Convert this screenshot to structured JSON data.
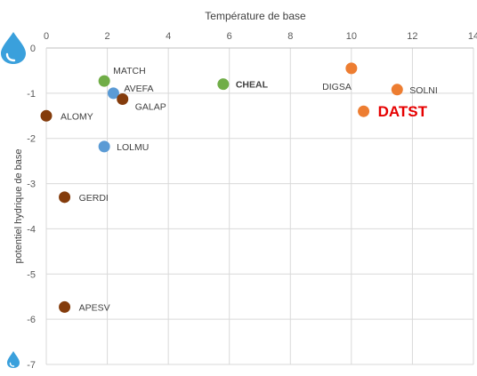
{
  "chart_data": {
    "type": "scatter",
    "xlabel": "Température de base",
    "ylabel": "potentiel hydrique de base",
    "xlim": [
      0,
      14
    ],
    "ylim": [
      -7,
      0
    ],
    "x_ticks": [
      "0",
      "2",
      "4",
      "6",
      "8",
      "10",
      "12",
      "14"
    ],
    "y_ticks": [
      "0",
      "-1",
      "-2",
      "-3",
      "-4",
      "-5",
      "-6",
      "-7"
    ],
    "x_axis_position": "top",
    "grid": true,
    "colors": {
      "green": "#70ad47",
      "blue": "#5b9bd5",
      "brown": "#843c0c",
      "orange": "#ed7d31",
      "highlight_label": "#e60000",
      "drop": "#3aa0dc"
    },
    "icons": {
      "top_left": "water-drop-icon",
      "bottom_left": "water-drop-icon"
    },
    "points": [
      {
        "label": "MATCH",
        "x": 1.9,
        "y": -0.73,
        "color": "green"
      },
      {
        "label": "AVEFA",
        "x": 2.2,
        "y": -1.0,
        "color": "blue"
      },
      {
        "label": "GALAP",
        "x": 2.5,
        "y": -1.13,
        "color": "brown"
      },
      {
        "label": "ALOMY",
        "x": 0.0,
        "y": -1.5,
        "color": "brown"
      },
      {
        "label": "LOLMU",
        "x": 1.9,
        "y": -2.18,
        "color": "blue"
      },
      {
        "label": "GERDI",
        "x": 0.6,
        "y": -3.3,
        "color": "brown"
      },
      {
        "label": "APESV",
        "x": 0.6,
        "y": -5.73,
        "color": "brown"
      },
      {
        "label": "CHEAL",
        "x": 5.8,
        "y": -0.8,
        "color": "green",
        "bold": true
      },
      {
        "label": "DIGSA",
        "x": 10.0,
        "y": -0.45,
        "color": "orange"
      },
      {
        "label": "SOLNI",
        "x": 11.5,
        "y": -0.92,
        "color": "orange"
      },
      {
        "label": "DATST",
        "x": 10.4,
        "y": -1.4,
        "color": "orange",
        "highlight": true
      }
    ]
  }
}
